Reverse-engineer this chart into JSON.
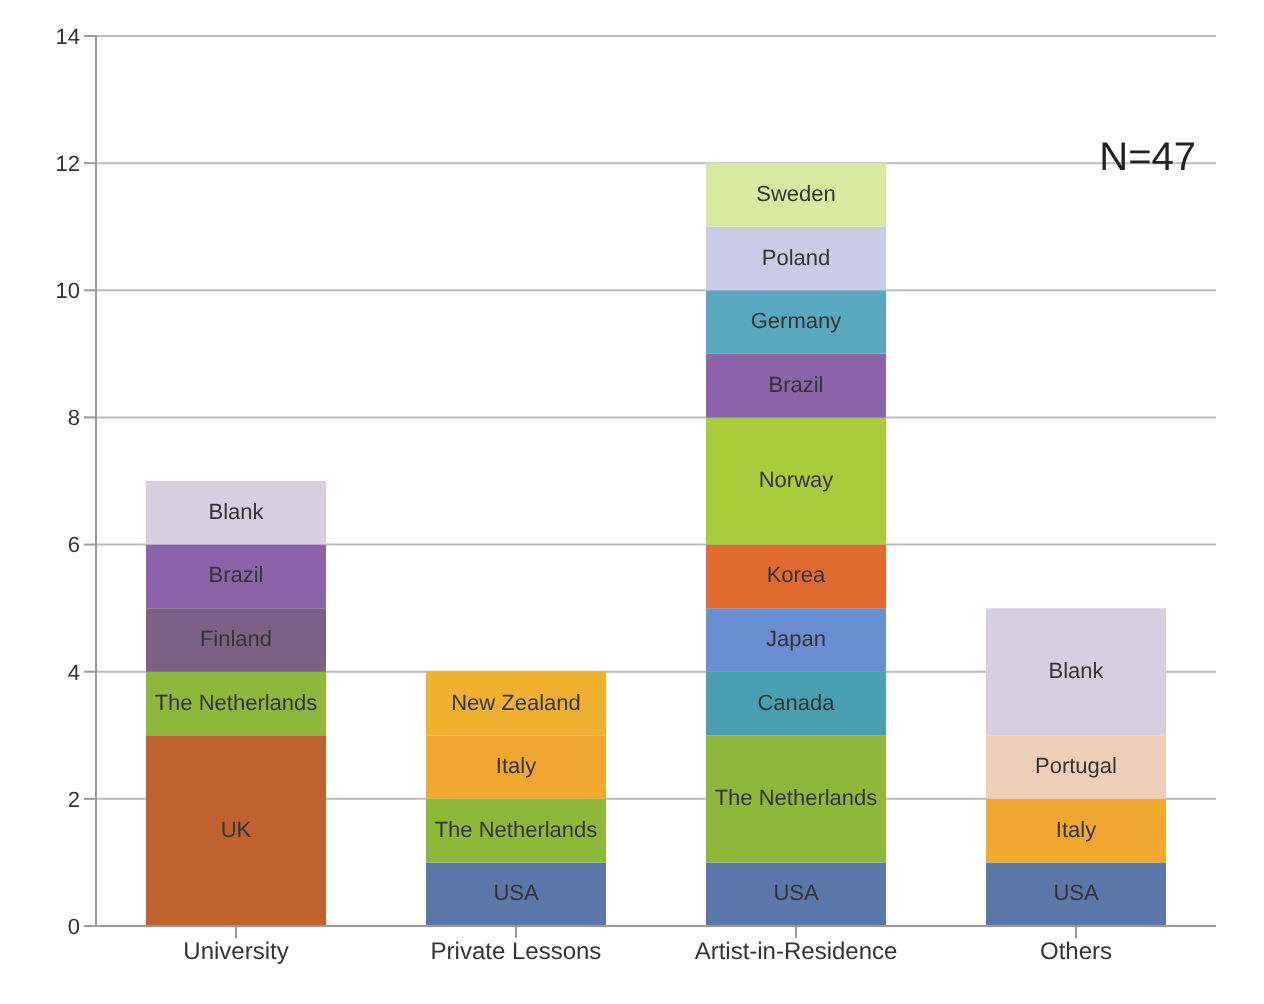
{
  "chart_data": {
    "type": "bar",
    "stacked": true,
    "categories": [
      "University",
      "Private Lessons",
      "Artist-in-Residence",
      "Others"
    ],
    "series": [
      {
        "values": [
          3,
          1,
          1,
          1
        ],
        "colors": [
          "#c0622f",
          "#5b76a8",
          "#5b76a8",
          "#5b76a8"
        ],
        "value_labels": [
          "UK",
          "USA",
          "USA",
          "USA"
        ]
      },
      {
        "values": [
          1,
          1,
          2,
          1
        ],
        "colors": [
          "#8db83a",
          "#8db83a",
          "#8db83a",
          "#f0a830"
        ],
        "value_labels": [
          "The Netherlands",
          "The Netherlands",
          "The Netherlands",
          "Italy"
        ]
      },
      {
        "values": [
          1,
          1,
          1,
          1
        ],
        "colors": [
          "#7e5f86",
          "#f0a830",
          "#4aa0b0",
          "#f0cfb8"
        ],
        "value_labels": [
          "Finland",
          "Italy",
          "Canada",
          "Portugal"
        ]
      },
      {
        "values": [
          1,
          1,
          1,
          2
        ],
        "colors": [
          "#8c63a8",
          "#f0b030",
          "#6a8ed0",
          "#d6cfe0"
        ],
        "value_labels": [
          "Brazil",
          "New Zealand",
          "Japan",
          "Blank"
        ]
      },
      {
        "values": [
          1,
          null,
          1,
          null
        ],
        "colors": [
          "#d6cfe0",
          null,
          "#e06a30",
          null
        ],
        "value_labels": [
          "Blank",
          null,
          "Korea",
          null
        ]
      },
      {
        "values": [
          null,
          null,
          2,
          null
        ],
        "colors": [
          null,
          null,
          "#a8cc3a",
          null
        ],
        "value_labels": [
          null,
          null,
          "Norway",
          null
        ]
      },
      {
        "values": [
          null,
          null,
          1,
          null
        ],
        "colors": [
          null,
          null,
          "#8c63a8",
          null
        ],
        "value_labels": [
          null,
          null,
          "Brazil",
          null
        ]
      },
      {
        "values": [
          null,
          null,
          1,
          null
        ],
        "colors": [
          null,
          null,
          "#5aa8c0",
          null
        ],
        "value_labels": [
          null,
          null,
          "Germany",
          null
        ]
      },
      {
        "values": [
          null,
          null,
          1,
          null
        ],
        "colors": [
          null,
          null,
          "#c8cce6",
          null
        ],
        "value_labels": [
          null,
          null,
          "Poland",
          null
        ]
      },
      {
        "values": [
          null,
          null,
          1,
          null
        ],
        "colors": [
          null,
          null,
          "#d8eaa0",
          null
        ],
        "value_labels": [
          null,
          null,
          "Sweden",
          null
        ]
      }
    ],
    "ylim": [
      0,
      14
    ],
    "yticks": [
      0,
      2,
      4,
      6,
      8,
      10,
      12,
      14
    ],
    "grid": "y",
    "legend": false,
    "annotations": [
      "N=47"
    ]
  }
}
